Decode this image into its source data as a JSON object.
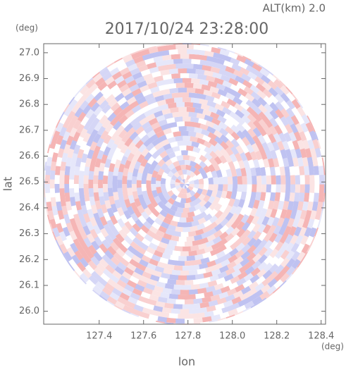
{
  "chart_data": {
    "type": "heatmap",
    "title": "2017/10/24 23:28:00",
    "altitude_label": "ALT(km) 2.0",
    "x_label": "lon",
    "y_label": "lat",
    "x_unit": "(deg)",
    "y_unit": "(deg)",
    "xlim": [
      127.15,
      128.42
    ],
    "ylim": [
      25.95,
      27.035
    ],
    "xticks": [
      127.4,
      127.6,
      127.8,
      {
        "value": 128.0,
        "label": "128.0"
      },
      128.2,
      128.4
    ],
    "yticks": [
      {
        "value": 26.0,
        "label": "26.0"
      },
      26.1,
      26.2,
      26.3,
      26.4,
      26.5,
      26.6,
      26.7,
      26.8,
      26.9,
      {
        "value": 27.0,
        "label": "27.0"
      }
    ]
  }
}
